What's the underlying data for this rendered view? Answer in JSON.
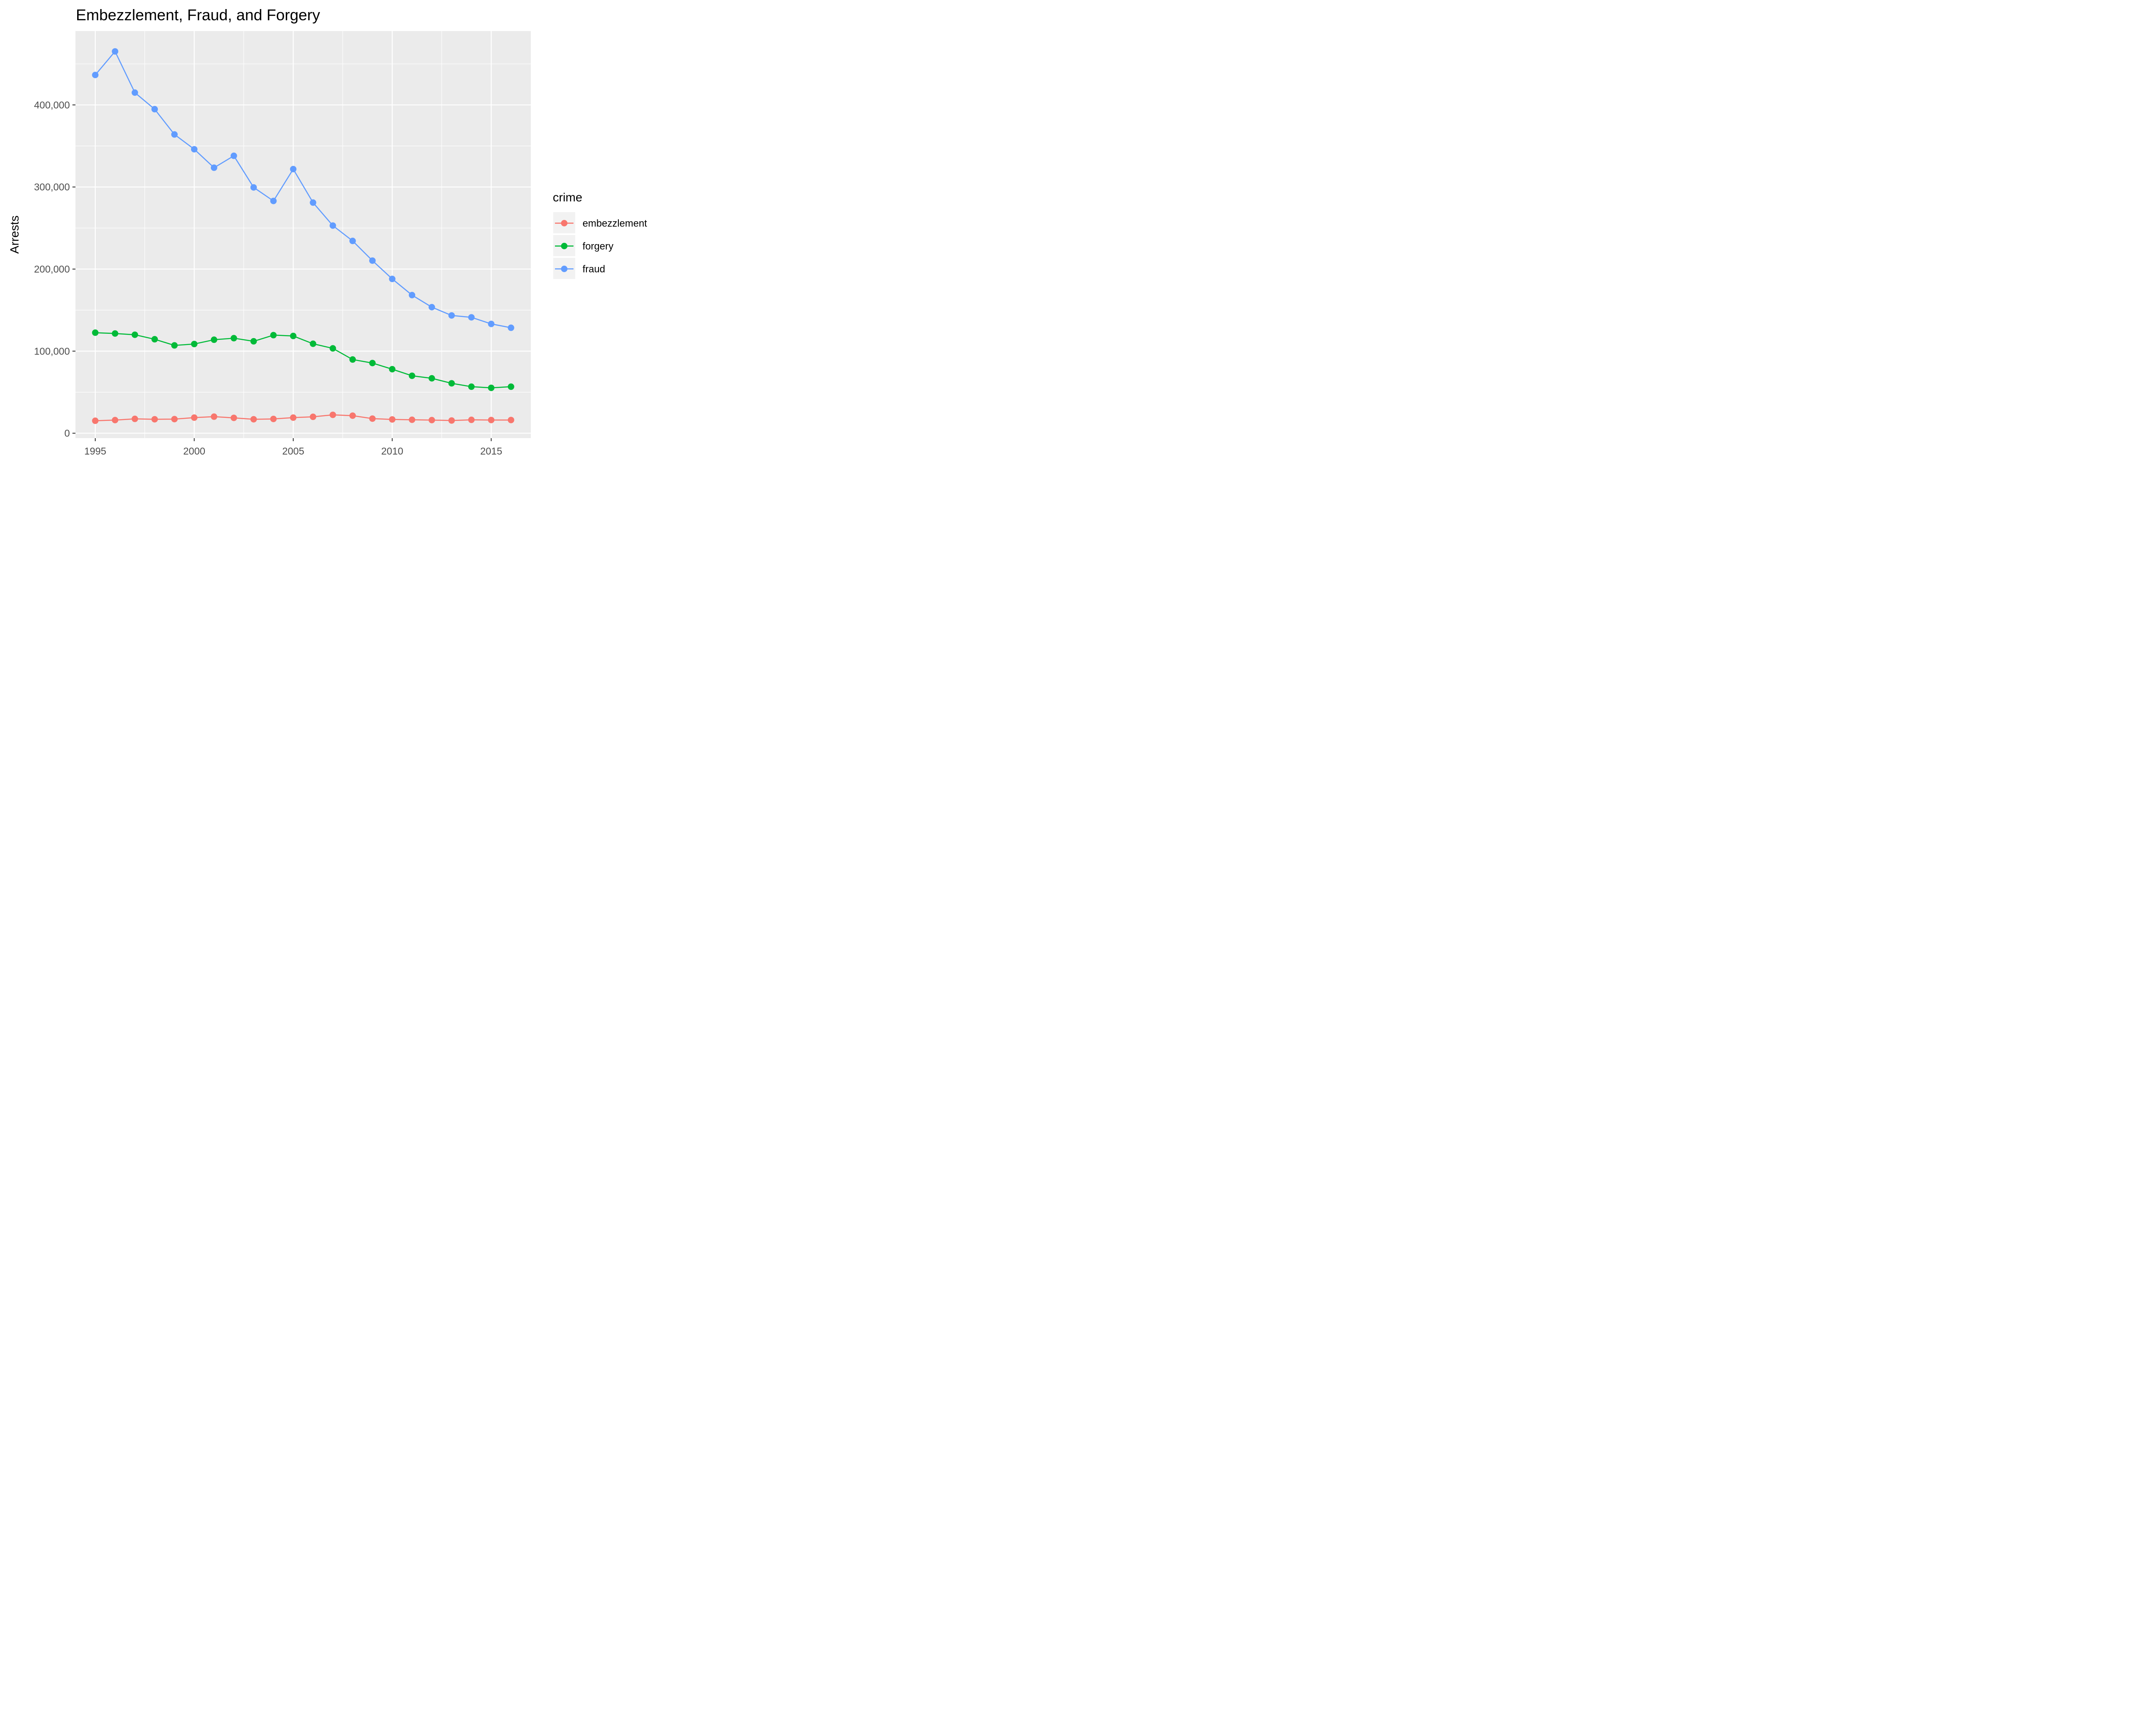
{
  "chart_data": {
    "type": "line",
    "title": "Embezzlement, Fraud, and Forgery",
    "xlabel": "",
    "ylabel": "Arrests",
    "xlim": [
      1994,
      2017
    ],
    "ylim": [
      -6000,
      490000
    ],
    "x_ticks": [
      1995,
      2000,
      2005,
      2010,
      2015
    ],
    "x_tick_labels": [
      "1995",
      "2000",
      "2005",
      "2010",
      "2015"
    ],
    "y_ticks": [
      0,
      100000,
      200000,
      300000,
      400000
    ],
    "y_tick_labels": [
      "0",
      "100,000",
      "200,000",
      "300,000",
      "400,000"
    ],
    "grid": true,
    "legend": {
      "title": "crime",
      "placement": "right"
    },
    "x": [
      1995,
      1996,
      1997,
      1998,
      1999,
      2000,
      2001,
      2002,
      2003,
      2004,
      2005,
      2006,
      2007,
      2008,
      2009,
      2010,
      2011,
      2012,
      2013,
      2014,
      2015,
      2016
    ],
    "series": [
      {
        "name": "embezzlement",
        "color": "#F8766D",
        "values": [
          15200,
          16000,
          17500,
          17000,
          17200,
          19000,
          20200,
          18700,
          17000,
          17400,
          19000,
          20000,
          22400,
          21400,
          17800,
          16800,
          16400,
          16000,
          15500,
          16300,
          16100,
          16100
        ]
      },
      {
        "name": "forgery",
        "color": "#00BA38",
        "values": [
          122500,
          121500,
          120000,
          114500,
          107000,
          108700,
          113900,
          115800,
          112000,
          119500,
          118500,
          109000,
          103400,
          89800,
          85500,
          78000,
          70000,
          66900,
          60800,
          56700,
          55300,
          56700
        ]
      },
      {
        "name": "fraud",
        "color": "#619CFF",
        "values": [
          436500,
          465200,
          415000,
          394800,
          364000,
          346000,
          323500,
          338000,
          299500,
          283000,
          321800,
          281000,
          253000,
          234300,
          210300,
          188000,
          168300,
          153600,
          143500,
          141200,
          133200,
          128500
        ]
      }
    ]
  }
}
